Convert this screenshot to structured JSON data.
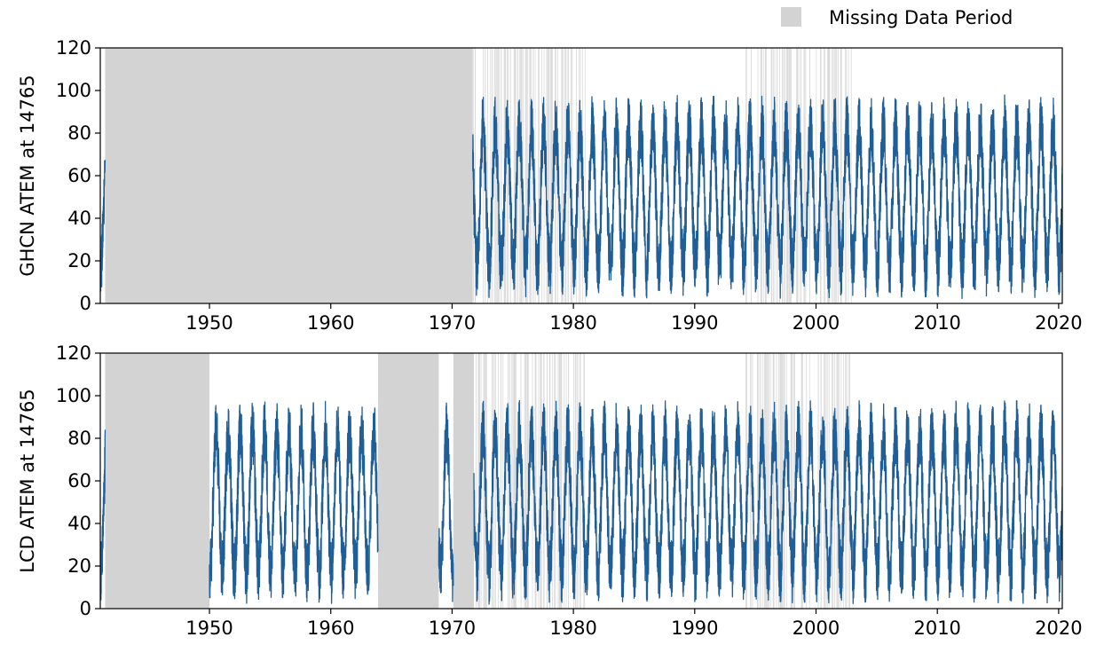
{
  "legend": {
    "label": "Missing Data Period",
    "color": "#d3d3d3",
    "position": "top-right"
  },
  "colors": {
    "series": "#1f5e96",
    "missing": "#d3d3d3",
    "missing_line": "#dadada",
    "axis": "#000000"
  },
  "chart_data": [
    {
      "type": "line",
      "ylabel": "GHCN ATEM at 14765",
      "xlim": [
        1941.0,
        2020.3
      ],
      "ylim": [
        0,
        120
      ],
      "yticks": [
        0,
        20,
        40,
        60,
        80,
        100,
        120
      ],
      "xticks": [
        1950,
        1960,
        1970,
        1980,
        1990,
        2000,
        2010,
        2020
      ],
      "series": [
        {
          "seasonal_range": [
            0,
            100
          ],
          "segments": [
            [
              1941.0,
              1941.4
            ],
            [
              1971.7,
              2020.3
            ]
          ]
        }
      ],
      "missing_periods": [
        [
          1941.4,
          1971.7
        ]
      ],
      "sparse_gap_ranges": [
        [
          1971.7,
          1981.0
        ],
        [
          1994.2,
          1999.5
        ],
        [
          2000.0,
          2003.0
        ]
      ]
    },
    {
      "type": "line",
      "ylabel": "LCD ATEM at 14765",
      "xlim": [
        1941.0,
        2020.3
      ],
      "ylim": [
        0,
        120
      ],
      "yticks": [
        0,
        20,
        40,
        60,
        80,
        100,
        120
      ],
      "xticks": [
        1950,
        1960,
        1970,
        1980,
        1990,
        2000,
        2010,
        2020
      ],
      "series": [
        {
          "seasonal_range": [
            0,
            100
          ],
          "segments": [
            [
              1941.0,
              1941.4
            ],
            [
              1950.0,
              1963.9
            ],
            [
              1968.9,
              1970.1
            ],
            [
              1971.8,
              2020.3
            ]
          ]
        }
      ],
      "missing_periods": [
        [
          1941.4,
          1950.0
        ],
        [
          1963.9,
          1968.9
        ],
        [
          1970.1,
          1971.8
        ]
      ],
      "sparse_gap_ranges": [
        [
          1971.8,
          1981.0
        ],
        [
          1994.2,
          1999.5
        ],
        [
          2000.0,
          2003.0
        ]
      ]
    }
  ]
}
